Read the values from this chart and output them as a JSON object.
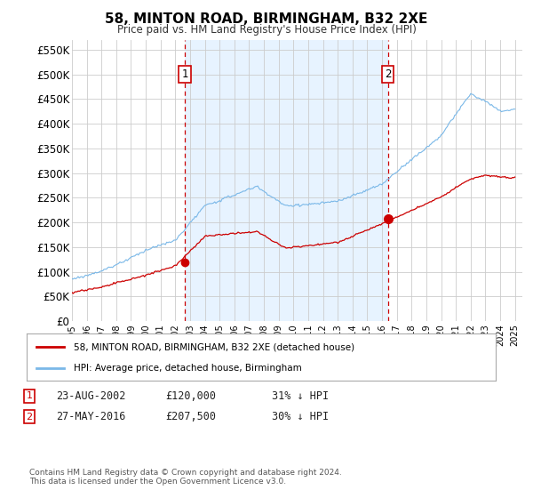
{
  "title": "58, MINTON ROAD, BIRMINGHAM, B32 2XE",
  "subtitle": "Price paid vs. HM Land Registry's House Price Index (HPI)",
  "ylim": [
    0,
    570000
  ],
  "yticks": [
    0,
    50000,
    100000,
    150000,
    200000,
    250000,
    300000,
    350000,
    400000,
    450000,
    500000,
    550000
  ],
  "x_start_year": 1995,
  "x_end_year": 2025,
  "sale1_year": 2002.65,
  "sale1_price": 120000,
  "sale2_year": 2016.4,
  "sale2_price": 207500,
  "hpi_color": "#7ab8e8",
  "hpi_fill_color": "#ddeeff",
  "price_color": "#cc0000",
  "dashed_color": "#cc0000",
  "legend1_text": "58, MINTON ROAD, BIRMINGHAM, B32 2XE (detached house)",
  "legend2_text": "HPI: Average price, detached house, Birmingham",
  "footer": "Contains HM Land Registry data © Crown copyright and database right 2024.\nThis data is licensed under the Open Government Licence v3.0.",
  "background_color": "#ffffff"
}
